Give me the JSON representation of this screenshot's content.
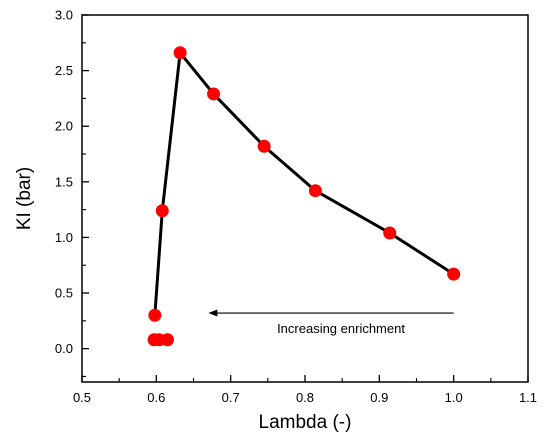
{
  "chart_data": {
    "type": "line",
    "title": "",
    "xlabel": "Lambda (-)",
    "ylabel": "KI (bar)",
    "xlim": [
      0.5,
      1.1
    ],
    "ylim": [
      -0.3,
      3.0
    ],
    "xticks": [
      0.5,
      0.6,
      0.7,
      0.8,
      0.9,
      1.0,
      1.1
    ],
    "xtick_labels": [
      "0.5",
      "0.6",
      "0.7",
      "0.8",
      "0.9",
      "1.0",
      "1.1"
    ],
    "yticks": [
      0.0,
      0.5,
      1.0,
      1.5,
      2.0,
      2.5,
      3.0
    ],
    "ytick_labels": [
      "0.0",
      "0.5",
      "1.0",
      "1.5",
      "2.0",
      "2.5",
      "3.0"
    ],
    "grid": false,
    "legend": "none",
    "colors": {
      "marker": "#ff0000",
      "line": "#000000"
    },
    "series": [
      {
        "x": [
          0.615,
          0.604,
          0.597,
          0.598,
          0.608,
          0.632,
          0.677,
          0.745,
          0.814,
          0.914,
          1.0
        ],
        "y": [
          0.08,
          0.08,
          0.08,
          0.3,
          1.24,
          2.66,
          2.29,
          1.82,
          1.42,
          1.04,
          0.67
        ]
      }
    ],
    "annotations": [
      {
        "text": "Increasing enrichment",
        "arrow_from": [
          1.0,
          0.32
        ],
        "arrow_to": [
          0.67,
          0.32
        ]
      }
    ]
  }
}
